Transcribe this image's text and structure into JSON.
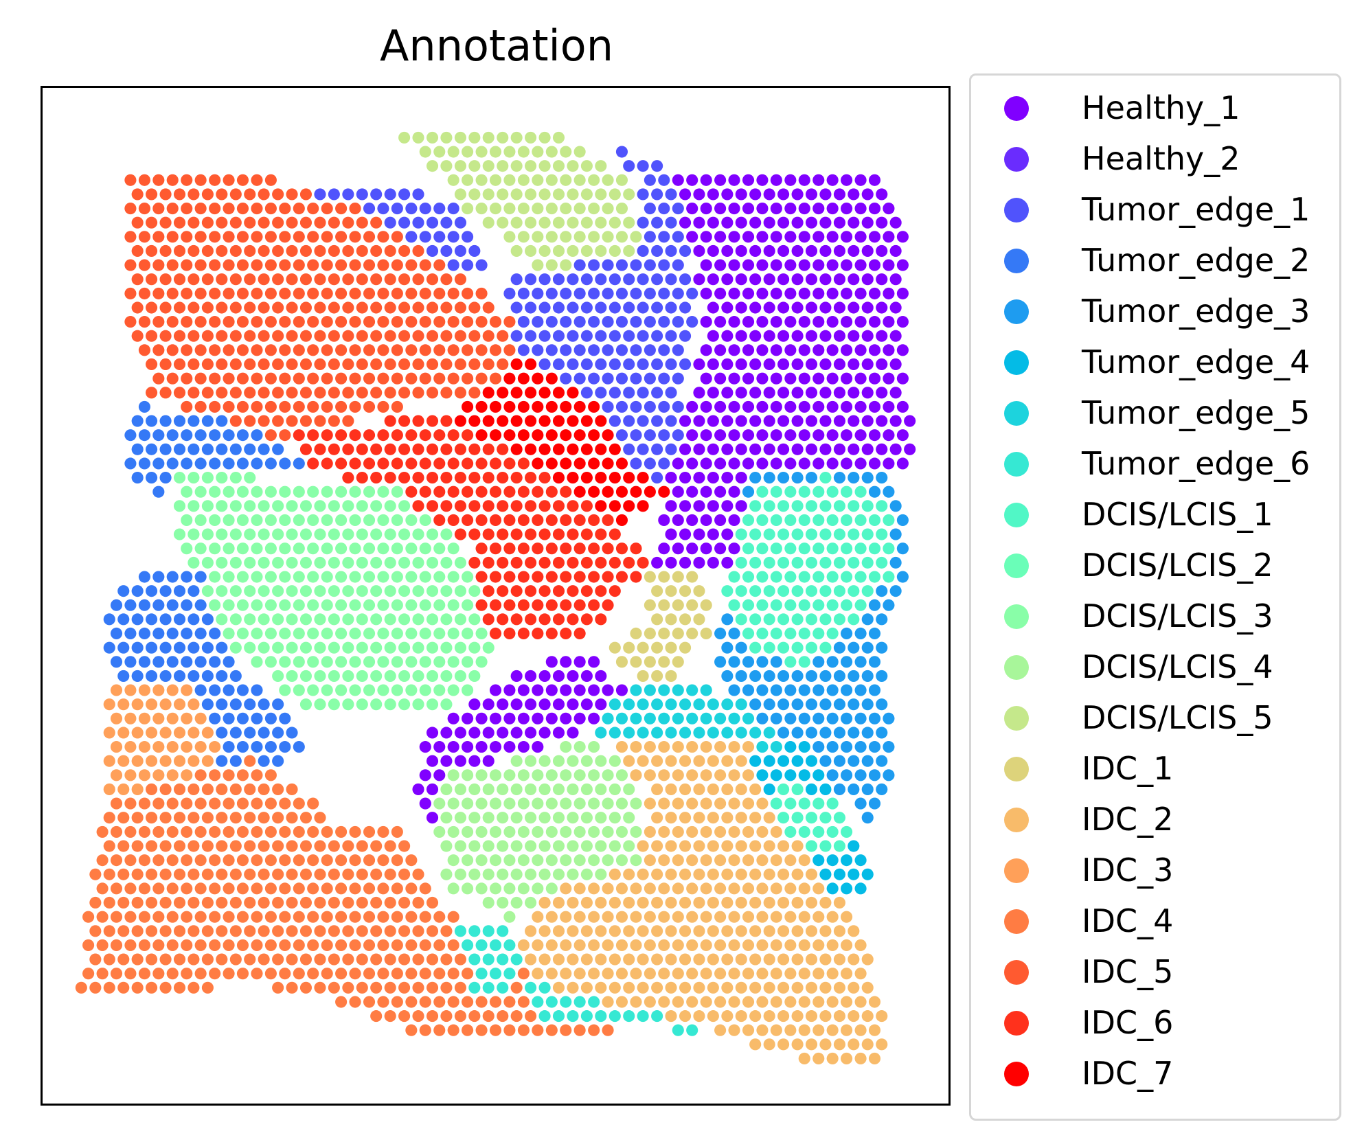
{
  "chart_data": {
    "type": "scatter",
    "title": "Annotation",
    "xlabel": "",
    "ylabel": "",
    "axes_ticks": "none",
    "grid": false,
    "legend_position": "right-outside",
    "categories": [
      {
        "name": "Healthy_1",
        "color": "#8000ff"
      },
      {
        "name": "Healthy_2",
        "color": "#6a2cfe"
      },
      {
        "name": "Tumor_edge_1",
        "color": "#5053fc"
      },
      {
        "name": "Tumor_edge_2",
        "color": "#3579f6"
      },
      {
        "name": "Tumor_edge_3",
        "color": "#1e9cf0"
      },
      {
        "name": "Tumor_edge_4",
        "color": "#04bbe6"
      },
      {
        "name": "Tumor_edge_5",
        "color": "#1dd3dd"
      },
      {
        "name": "Tumor_edge_6",
        "color": "#36e8d3"
      },
      {
        "name": "DCIS/LCIS_1",
        "color": "#51f7c6"
      },
      {
        "name": "DCIS/LCIS_2",
        "color": "#6afeb8"
      },
      {
        "name": "DCIS/LCIS_3",
        "color": "#89fea8"
      },
      {
        "name": "DCIS/LCIS_4",
        "color": "#a8f69a"
      },
      {
        "name": "DCIS/LCIS_5",
        "color": "#c5e88b"
      },
      {
        "name": "IDC_1",
        "color": "#ddd37b"
      },
      {
        "name": "IDC_2",
        "color": "#f8bb6a"
      },
      {
        "name": "IDC_3",
        "color": "#ffa059"
      },
      {
        "name": "IDC_4",
        "color": "#ff7c43"
      },
      {
        "name": "IDC_5",
        "color": "#ff5a30"
      },
      {
        "name": "IDC_6",
        "color": "#ff311c"
      },
      {
        "name": "IDC_7",
        "color": "#ff0000"
      }
    ],
    "regions": [
      {
        "category": "IDC_5",
        "polygon": [
          [
            0.09,
            0.09
          ],
          [
            0.26,
            0.09
          ],
          [
            0.38,
            0.11
          ],
          [
            0.52,
            0.23
          ],
          [
            0.55,
            0.29
          ],
          [
            0.49,
            0.34
          ],
          [
            0.44,
            0.3
          ],
          [
            0.38,
            0.32
          ],
          [
            0.23,
            0.35
          ],
          [
            0.12,
            0.3
          ],
          [
            0.09,
            0.22
          ]
        ]
      },
      {
        "category": "DCIS/LCIS_5",
        "polygon": [
          [
            0.39,
            0.04
          ],
          [
            0.57,
            0.04
          ],
          [
            0.65,
            0.09
          ],
          [
            0.66,
            0.16
          ],
          [
            0.55,
            0.18
          ],
          [
            0.48,
            0.13
          ]
        ]
      },
      {
        "category": "Tumor_edge_1",
        "polygon": [
          [
            0.63,
            0.06
          ],
          [
            0.7,
            0.08
          ],
          [
            0.72,
            0.22
          ],
          [
            0.7,
            0.36
          ],
          [
            0.66,
            0.41
          ],
          [
            0.58,
            0.32
          ],
          [
            0.53,
            0.26
          ],
          [
            0.5,
            0.19
          ],
          [
            0.56,
            0.18
          ],
          [
            0.66,
            0.16
          ],
          [
            0.66,
            0.09
          ]
        ]
      },
      {
        "category": "Tumor_edge_1",
        "polygon": [
          [
            0.28,
            0.1
          ],
          [
            0.38,
            0.1
          ],
          [
            0.46,
            0.11
          ],
          [
            0.5,
            0.19
          ],
          [
            0.44,
            0.17
          ],
          [
            0.35,
            0.12
          ]
        ]
      },
      {
        "category": "Healthy_1",
        "polygon": [
          [
            0.7,
            0.09
          ],
          [
            0.93,
            0.09
          ],
          [
            0.95,
            0.12
          ],
          [
            0.96,
            0.38
          ],
          [
            0.88,
            0.37
          ],
          [
            0.79,
            0.42
          ],
          [
            0.76,
            0.47
          ],
          [
            0.67,
            0.47
          ],
          [
            0.7,
            0.36
          ],
          [
            0.73,
            0.23
          ]
        ]
      },
      {
        "category": "IDC_7",
        "polygon": [
          [
            0.53,
            0.26
          ],
          [
            0.6,
            0.3
          ],
          [
            0.66,
            0.38
          ],
          [
            0.7,
            0.4
          ],
          [
            0.63,
            0.43
          ],
          [
            0.55,
            0.39
          ],
          [
            0.44,
            0.33
          ],
          [
            0.5,
            0.29
          ]
        ]
      },
      {
        "category": "IDC_6",
        "polygon": [
          [
            0.27,
            0.34
          ],
          [
            0.44,
            0.32
          ],
          [
            0.56,
            0.38
          ],
          [
            0.64,
            0.43
          ],
          [
            0.67,
            0.47
          ],
          [
            0.6,
            0.54
          ],
          [
            0.49,
            0.55
          ],
          [
            0.47,
            0.45
          ],
          [
            0.38,
            0.39
          ],
          [
            0.29,
            0.38
          ]
        ]
      },
      {
        "category": "Tumor_edge_2",
        "polygon": [
          [
            0.1,
            0.31
          ],
          [
            0.22,
            0.33
          ],
          [
            0.3,
            0.38
          ],
          [
            0.19,
            0.38
          ],
          [
            0.13,
            0.4
          ],
          [
            0.09,
            0.38
          ]
        ]
      },
      {
        "category": "DCIS/LCIS_3",
        "polygon": [
          [
            0.15,
            0.38
          ],
          [
            0.38,
            0.39
          ],
          [
            0.46,
            0.44
          ],
          [
            0.5,
            0.56
          ],
          [
            0.45,
            0.62
          ],
          [
            0.3,
            0.62
          ],
          [
            0.21,
            0.55
          ],
          [
            0.15,
            0.46
          ]
        ]
      },
      {
        "category": "Tumor_edge_2",
        "polygon": [
          [
            0.12,
            0.47
          ],
          [
            0.17,
            0.47
          ],
          [
            0.21,
            0.57
          ],
          [
            0.28,
            0.62
          ],
          [
            0.3,
            0.66
          ],
          [
            0.2,
            0.67
          ],
          [
            0.12,
            0.6
          ],
          [
            0.07,
            0.57
          ],
          [
            0.07,
            0.5
          ]
        ]
      },
      {
        "category": "IDC_3",
        "polygon": [
          [
            0.07,
            0.59
          ],
          [
            0.16,
            0.59
          ],
          [
            0.2,
            0.66
          ],
          [
            0.15,
            0.7
          ],
          [
            0.07,
            0.7
          ]
        ]
      },
      {
        "category": "IDC_4",
        "polygon": [
          [
            0.07,
            0.7
          ],
          [
            0.15,
            0.68
          ],
          [
            0.24,
            0.66
          ],
          [
            0.32,
            0.72
          ],
          [
            0.4,
            0.73
          ],
          [
            0.44,
            0.8
          ],
          [
            0.5,
            0.84
          ],
          [
            0.56,
            0.9
          ],
          [
            0.64,
            0.93
          ],
          [
            0.44,
            0.94
          ],
          [
            0.32,
            0.9
          ],
          [
            0.22,
            0.88
          ],
          [
            0.12,
            0.9
          ],
          [
            0.04,
            0.89
          ],
          [
            0.05,
            0.8
          ]
        ]
      },
      {
        "category": "Healthy_1",
        "polygon": [
          [
            0.43,
            0.63
          ],
          [
            0.52,
            0.58
          ],
          [
            0.59,
            0.55
          ],
          [
            0.66,
            0.6
          ],
          [
            0.58,
            0.64
          ],
          [
            0.48,
            0.67
          ],
          [
            0.42,
            0.73
          ],
          [
            0.41,
            0.68
          ]
        ]
      },
      {
        "category": "IDC_1",
        "polygon": [
          [
            0.67,
            0.48
          ],
          [
            0.73,
            0.48
          ],
          [
            0.74,
            0.53
          ],
          [
            0.7,
            0.58
          ],
          [
            0.66,
            0.59
          ],
          [
            0.62,
            0.55
          ],
          [
            0.67,
            0.52
          ]
        ]
      },
      {
        "category": "Tumor_edge_5",
        "polygon": [
          [
            0.62,
            0.6
          ],
          [
            0.72,
            0.58
          ],
          [
            0.8,
            0.62
          ],
          [
            0.85,
            0.72
          ],
          [
            0.8,
            0.74
          ],
          [
            0.7,
            0.66
          ],
          [
            0.6,
            0.64
          ]
        ]
      },
      {
        "category": "Tumor_edge_3",
        "polygon": [
          [
            0.78,
            0.38
          ],
          [
            0.94,
            0.38
          ],
          [
            0.96,
            0.45
          ],
          [
            0.93,
            0.55
          ],
          [
            0.94,
            0.7
          ],
          [
            0.91,
            0.72
          ],
          [
            0.84,
            0.66
          ],
          [
            0.78,
            0.61
          ],
          [
            0.74,
            0.57
          ],
          [
            0.76,
            0.47
          ]
        ]
      },
      {
        "category": "DCIS/LCIS_1",
        "polygon": [
          [
            0.78,
            0.4
          ],
          [
            0.87,
            0.38
          ],
          [
            0.94,
            0.41
          ],
          [
            0.94,
            0.48
          ],
          [
            0.89,
            0.53
          ],
          [
            0.85,
            0.57
          ],
          [
            0.78,
            0.56
          ],
          [
            0.75,
            0.5
          ]
        ]
      },
      {
        "category": "DCIS/LCIS_4",
        "polygon": [
          [
            0.44,
            0.68
          ],
          [
            0.6,
            0.64
          ],
          [
            0.66,
            0.67
          ],
          [
            0.66,
            0.76
          ],
          [
            0.58,
            0.79
          ],
          [
            0.52,
            0.82
          ],
          [
            0.45,
            0.79
          ],
          [
            0.43,
            0.72
          ]
        ]
      },
      {
        "category": "IDC_2",
        "polygon": [
          [
            0.63,
            0.64
          ],
          [
            0.78,
            0.64
          ],
          [
            0.84,
            0.74
          ],
          [
            0.9,
            0.82
          ],
          [
            0.93,
            0.91
          ],
          [
            0.93,
            0.96
          ],
          [
            0.84,
            0.96
          ],
          [
            0.72,
            0.92
          ],
          [
            0.58,
            0.91
          ],
          [
            0.52,
            0.86
          ],
          [
            0.54,
            0.8
          ],
          [
            0.66,
            0.76
          ],
          [
            0.67,
            0.7
          ]
        ]
      },
      {
        "category": "Tumor_edge_4",
        "polygon": [
          [
            0.78,
            0.66
          ],
          [
            0.84,
            0.64
          ],
          [
            0.88,
            0.7
          ],
          [
            0.91,
            0.75
          ],
          [
            0.92,
            0.8
          ],
          [
            0.88,
            0.8
          ],
          [
            0.82,
            0.72
          ]
        ]
      },
      {
        "category": "DCIS/LCIS_1",
        "polygon": [
          [
            0.8,
            0.68
          ],
          [
            0.88,
            0.7
          ],
          [
            0.9,
            0.74
          ],
          [
            0.86,
            0.76
          ],
          [
            0.82,
            0.73
          ]
        ]
      },
      {
        "category": "Tumor_edge_6",
        "polygon": [
          [
            0.46,
            0.83
          ],
          [
            0.52,
            0.82
          ],
          [
            0.53,
            0.88
          ],
          [
            0.48,
            0.9
          ]
        ]
      },
      {
        "category": "Tumor_edge_6",
        "polygon": [
          [
            0.53,
            0.88
          ],
          [
            0.67,
            0.91
          ],
          [
            0.74,
            0.93
          ],
          [
            0.55,
            0.92
          ]
        ]
      }
    ]
  }
}
